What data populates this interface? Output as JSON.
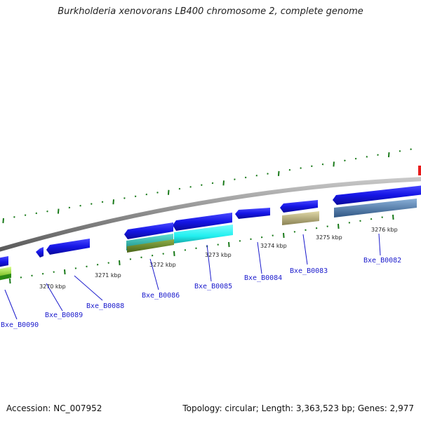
{
  "title": "Burkholderia xenovorans LB400 chromosome 2, complete genome",
  "footer": {
    "accession": "Accession: NC_007952",
    "topology": "Topology: circular; Length: 3,363,523 bp; Genes: 2,977"
  },
  "scale_labels": [
    "3270 kbp",
    "3271 kbp",
    "3272 kbp",
    "3273 kbp",
    "3274 kbp",
    "3275 kbp",
    "3276 kbp"
  ],
  "gene_labels": [
    "Bxe_B0090",
    "Bxe_B0089",
    "Bxe_B0088",
    "Bxe_B0086",
    "Bxe_B0085",
    "Bxe_B0084",
    "Bxe_B0083",
    "Bxe_B0082"
  ],
  "colors": {
    "backbone": "#888888",
    "cds": "#1515e6",
    "tick": "#1a7a1a",
    "cyan": "#22f0f0",
    "teal": "#22c4b8",
    "olive": "#6b8a2a",
    "khaki": "#c4bc86",
    "steel": "#5b86b8",
    "lime": "#a8f02a",
    "red": "#e81a1a",
    "label": "#1a1acc"
  }
}
